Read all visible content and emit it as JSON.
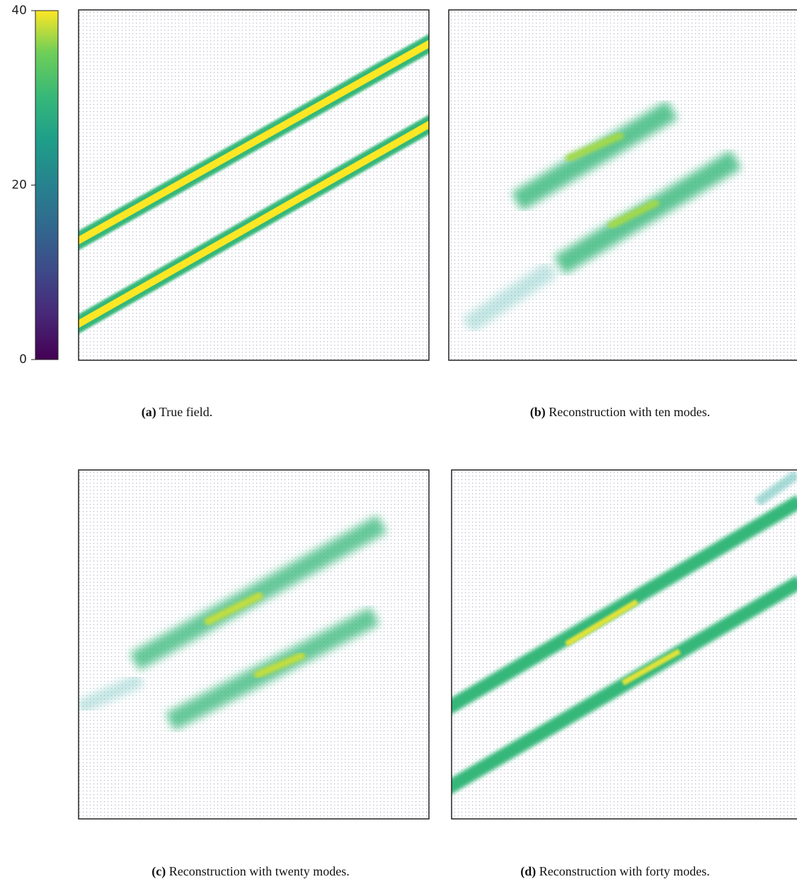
{
  "colorbar": {
    "lim": [
      0,
      40
    ],
    "ticks": [
      0,
      20,
      40
    ]
  },
  "panels": [
    {
      "label": "(a)",
      "caption": "True field."
    },
    {
      "label": "(b)",
      "caption": "Reconstruction with ten modes."
    },
    {
      "label": "(c)",
      "caption": "Reconstruction with twenty modes."
    },
    {
      "label": "(d)",
      "caption": "Reconstruction with forty modes."
    }
  ]
}
